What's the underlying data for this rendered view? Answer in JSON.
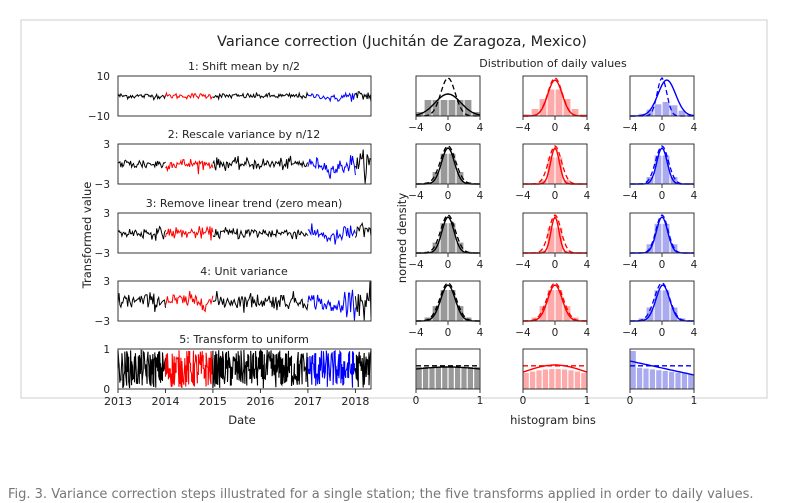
{
  "figure": {
    "title": "Variance correction (Juchitán de Zaragoza, Mexico)",
    "caption": "Fig. 3. Variance correction steps illustrated for a single station; the five transforms applied in order to daily values."
  },
  "colors": {
    "frame": "#cfcfcf",
    "series_main": "#000000",
    "series_train": "#ff0000",
    "series_test": "#0000ff",
    "hist_main": "#999999",
    "hist_train": "#ffaaaa",
    "hist_test": "#aaaaee"
  },
  "chart_data": [
    {
      "type": "line",
      "name": "time-series",
      "xlabel": "Date",
      "ylabel": "Transformed value",
      "x_ticks": [
        "2013",
        "2014",
        "2015",
        "2016",
        "2017",
        "2018"
      ],
      "xlim": [
        "2013-01-01",
        "2018-05-01"
      ],
      "segments": [
        {
          "color": "series_main",
          "start": "2013-01-01",
          "end": "2014-01-01"
        },
        {
          "color": "series_train",
          "start": "2014-01-01",
          "end": "2015-01-01"
        },
        {
          "color": "series_main",
          "start": "2015-01-01",
          "end": "2017-01-01"
        },
        {
          "color": "series_test",
          "start": "2017-01-01",
          "end": "2018-01-01"
        },
        {
          "color": "series_main",
          "start": "2018-01-01",
          "end": "2018-05-01"
        }
      ],
      "panels": [
        {
          "title": "1: Shift mean by n/2",
          "ylim": [
            -10,
            10
          ],
          "yticks": [
            "10",
            "−10"
          ]
        },
        {
          "title": "2: Rescale variance by n/12",
          "ylim": [
            -3,
            3
          ],
          "yticks": [
            "3",
            "−3"
          ]
        },
        {
          "title": "3: Remove linear trend (zero mean)",
          "ylim": [
            -3,
            3
          ],
          "yticks": [
            "3",
            "−3"
          ]
        },
        {
          "title": "4: Unit variance",
          "ylim": [
            -3,
            3
          ],
          "yticks": [
            "3",
            "−3"
          ]
        },
        {
          "title": "5: Transform to uniform",
          "ylim": [
            0,
            1
          ],
          "yticks": [
            "1",
            "0"
          ]
        }
      ]
    },
    {
      "type": "bar",
      "name": "histograms",
      "title": "Distribution of daily values",
      "xlabel": "histogram bins",
      "ylabel": "normed density",
      "rows_xlim": [
        [
          -4,
          4
        ],
        [
          -4,
          4
        ],
        [
          -4,
          4
        ],
        [
          -4,
          4
        ],
        [
          0,
          1
        ]
      ],
      "rows_xticks": [
        [
          "−4",
          "0",
          "4"
        ],
        [
          "−4",
          "0",
          "4"
        ],
        [
          "−4",
          "0",
          "4"
        ],
        [
          "−4",
          "0",
          "4"
        ],
        [
          "0",
          "1"
        ]
      ]
    }
  ]
}
